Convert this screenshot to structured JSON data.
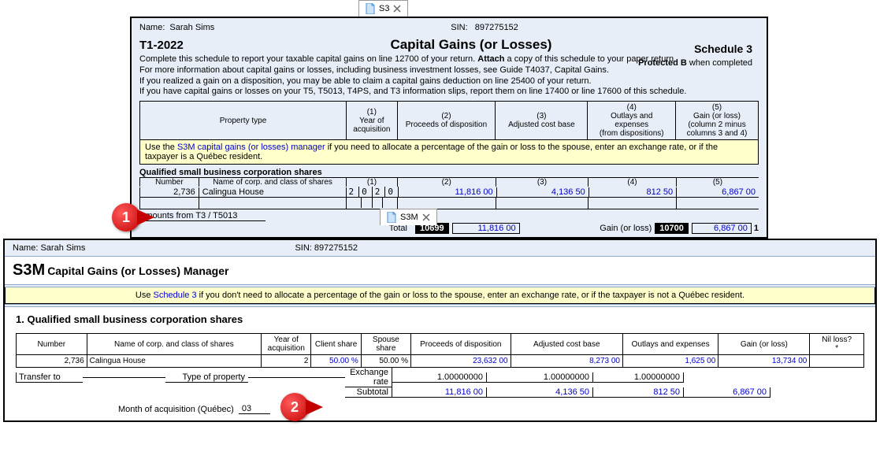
{
  "tabS3": {
    "label": "S3"
  },
  "tabS3M": {
    "label": "S3M"
  },
  "person": {
    "nameLabel": "Name:",
    "name": "Sarah Sims",
    "sinLabel": "SIN:",
    "sin": "897275152"
  },
  "header": {
    "t1year": "T1-2022",
    "title": "Capital Gains (or Losses)",
    "schedule": "Schedule 3",
    "protected": "Protected B when completed"
  },
  "intro": {
    "l1a": "Complete this schedule to report your taxable capital gains on line 12700 of your return. ",
    "l1b": "Attach",
    "l1c": " a copy of this schedule to your paper return.",
    "l2": "For more information about capital gains or losses, including business investment losses, see Guide T4037, Capital Gains.",
    "l3": "If you realized a gain on a disposition, you may be able to claim a capital gains deduction on line 25400 of your return.",
    "l4": "If you have capital gains or losses on your T5, T5013, T4PS, and T3 information slips, report them on line 17400 or line 17600 of this schedule."
  },
  "gridHeader": {
    "prop": "Property type",
    "c1a": "(1)",
    "c1b": "Year of",
    "c1c": "acquisition",
    "c2a": "(2)",
    "c2b": "Proceeds of disposition",
    "c3a": "(3)",
    "c3b": "Adjusted cost base",
    "c4a": "(4)",
    "c4b": "Outlays and",
    "c4c": "expenses",
    "c4d": "(from dispositions)",
    "c5a": "(5)",
    "c5b": "Gain (or loss)",
    "c5c": "(column 2 minus",
    "c5d": "columns 3 and 4)"
  },
  "yellowS3": {
    "pre": "Use the ",
    "link": "S3M capital gains (or losses) manager",
    "post": " if you need to allocate a percentage of the gain or loss to the spouse, enter an exchange rate, or if the taxpayer is a Québec resident."
  },
  "qsbc": {
    "label": "Qualified small business corporation shares",
    "subNum": "Number",
    "subCorp": "Name of corp. and class of shares",
    "ids": {
      "c1": "(1)",
      "c2": "(2)",
      "c3": "(3)",
      "c4": "(4)",
      "c5": "(5)"
    },
    "number": "2,736",
    "corp": "Calingua House",
    "year": "2020",
    "proceeds": "11,816 00",
    "adjCost": "4,136 50",
    "outlays": "812 50",
    "gain": "6,867 00"
  },
  "t3line": "Amounts from T3 / T5013",
  "totals": {
    "totalLabel": "Total",
    "box1": "10699",
    "amt1": "11,816 00",
    "gainLabel": "Gain (or loss)",
    "box2": "10700",
    "amt2": "6,867 00",
    "trail": "1"
  },
  "s3m": {
    "titleBig": "S3M",
    "titleSub": "Capital Gains (or Losses) Manager",
    "yellowPre": "Use ",
    "yellowLink": "Schedule 3",
    "yellowPost": " if you don't need to allocate a percentage of the gain or loss to the spouse, enter an exchange rate, or if the taxpayer is not a Québec resident.",
    "sect1": "1. Qualified small business corporation shares",
    "th": {
      "num": "Number",
      "corp": "Name of corp. and class of shares",
      "yr": "Year of acquisition",
      "cs": "Client share",
      "ss": "Spouse share",
      "pd": "Proceeds of disposition",
      "acb": "Adjusted cost base",
      "oe": "Outlays and expenses",
      "gl": "Gain (or loss)",
      "nil": "Nil loss?",
      "nilstar": "*"
    },
    "row": {
      "num": "2,736",
      "corp": "Calingua House",
      "yr": "2",
      "cs": "50.00 %",
      "ss": "50.00 %",
      "pd": "23,632 00",
      "acb": "8,273 00",
      "oe": "1,625 00",
      "gl": "13,734 00",
      "nil": ""
    },
    "transfer": "Transfer to",
    "typeprop": "Type of property",
    "exch": "Exchange rate",
    "exchV": {
      "pd": "1.00000000",
      "acb": "1.00000000",
      "oe": "1.00000000"
    },
    "subtot": "Subtotal",
    "subV": {
      "pd": "11,816 00",
      "acb": "4,136 50",
      "oe": "812 50",
      "gl": "6,867 00"
    },
    "month": "Month of acquisition (Québec)",
    "monthV": "03"
  },
  "callouts": {
    "one": "1",
    "two": "2"
  }
}
